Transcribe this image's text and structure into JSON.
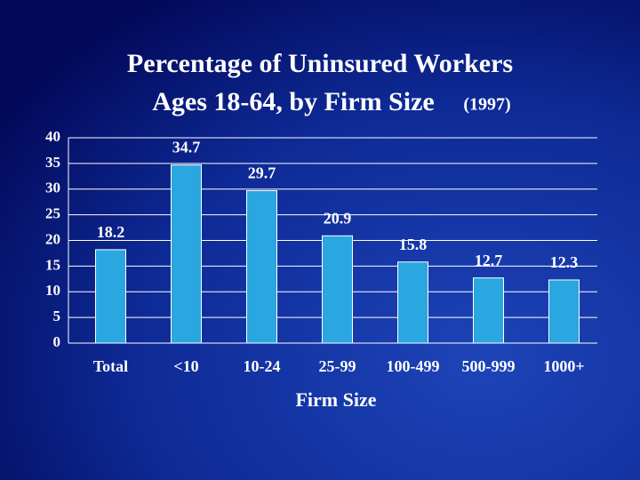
{
  "chart_data": {
    "type": "bar",
    "title": [
      "Percentage of Uninsured Workers",
      "Ages 18-64, by Firm Size"
    ],
    "title_year": "(1997)",
    "x_label": "Firm Size",
    "categories": [
      "Total",
      "<10",
      "10-24",
      "25-99",
      "100-499",
      "500-999",
      "1000+"
    ],
    "values": [
      18.2,
      34.7,
      29.7,
      20.9,
      15.8,
      12.7,
      12.3
    ],
    "value_labels": [
      "18.2",
      "34.7",
      "29.7",
      "20.9",
      "15.8",
      "12.7",
      "12.3"
    ],
    "color": "#2aa6e0",
    "ylim": [
      0,
      40
    ],
    "yticks": [
      0,
      5,
      10,
      15,
      20,
      25,
      30,
      35,
      40
    ],
    "grid": true
  }
}
